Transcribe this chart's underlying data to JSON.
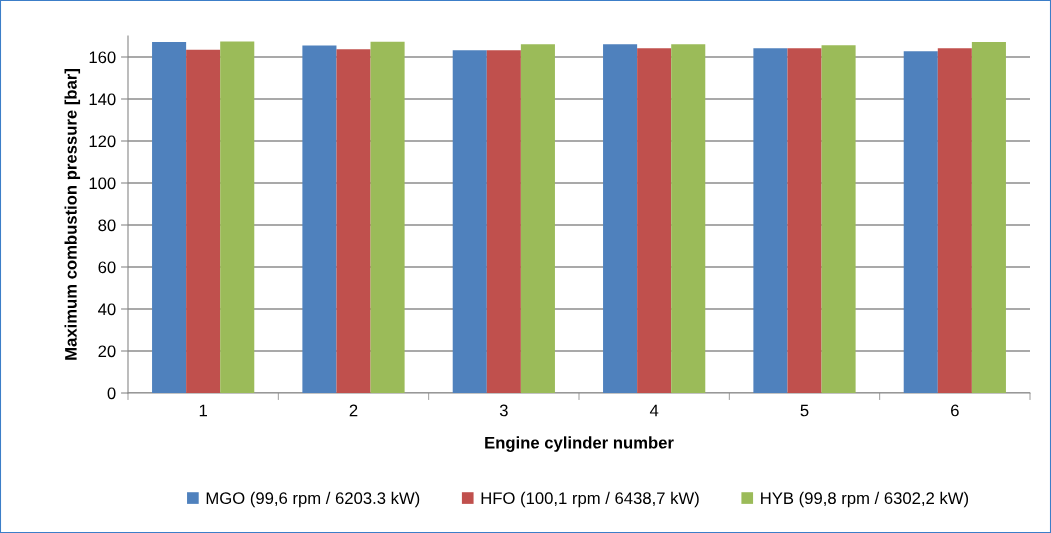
{
  "chart_data": {
    "type": "bar",
    "xlabel": "Engine cylinder number",
    "ylabel": "Maximum combustion pressure [bar]",
    "categories": [
      "1",
      "2",
      "3",
      "4",
      "5",
      "6"
    ],
    "series": [
      {
        "name": "MGO (99,6 rpm / 6203.3 kW)",
        "color": "#4f81bd",
        "values": [
          167.1,
          165.5,
          163.2,
          166.1,
          164.2,
          162.7
        ]
      },
      {
        "name": "HFO (100,1 rpm / 6438,7 kW)",
        "color": "#c0504d",
        "values": [
          163.4,
          163.7,
          163.2,
          164.2,
          164.2,
          164.2
        ]
      },
      {
        "name": "HYB (99,8 rpm / 6302,2 kW)",
        "color": "#9bbb59",
        "values": [
          167.4,
          167.3,
          166.1,
          166.1,
          165.6,
          167.1
        ]
      }
    ],
    "ylim": [
      0,
      170
    ],
    "yticks": [
      0,
      20,
      40,
      60,
      80,
      100,
      120,
      140,
      160
    ],
    "grid": "y",
    "legend": "bottom"
  }
}
